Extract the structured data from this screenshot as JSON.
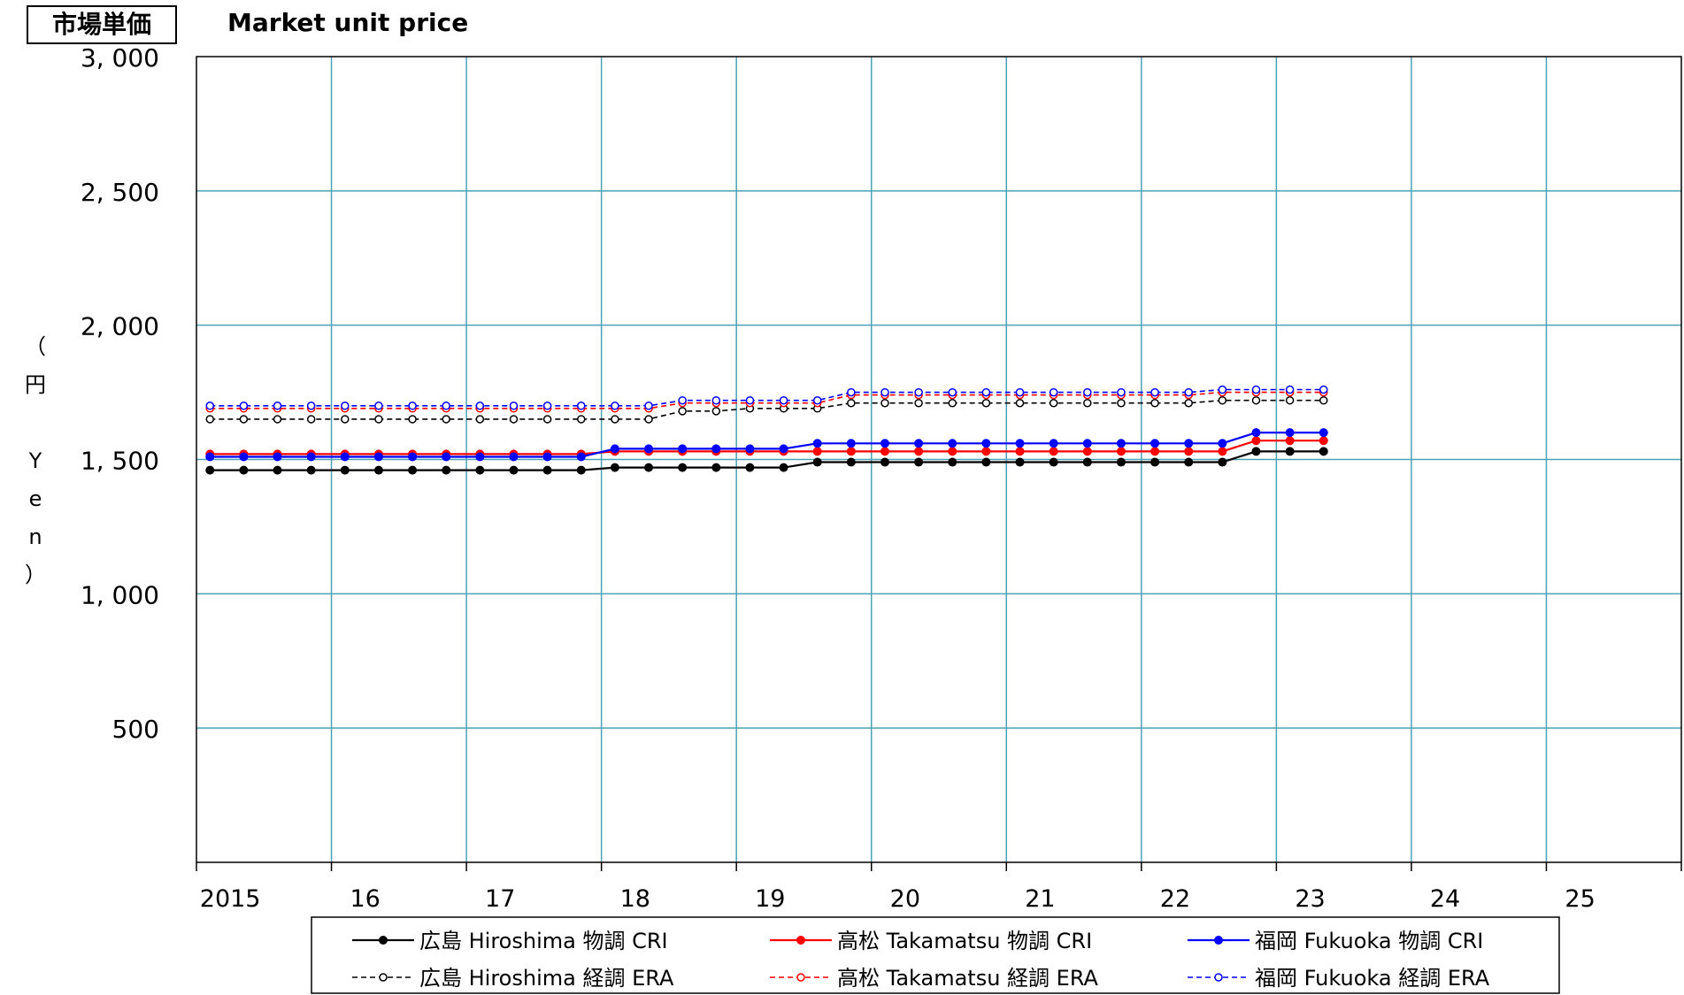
{
  "header": {
    "jp_title": "市場単価",
    "en_title": "Market unit price"
  },
  "chart_data": {
    "type": "line",
    "title": "Market unit price",
    "ylabel": "（円 Yen）",
    "ylim": [
      0,
      3000
    ],
    "yticks": [
      500,
      1000,
      1500,
      2000,
      2500,
      3000
    ],
    "ytick_labels": [
      "500",
      "1, 000",
      "1, 500",
      "2, 000",
      "2, 500",
      "3, 000"
    ],
    "xlim": [
      2015,
      2026
    ],
    "x_tick_labels": [
      "2015",
      "16",
      "17",
      "18",
      "19",
      "20",
      "21",
      "22",
      "23",
      "24",
      "25"
    ],
    "x_label_positions": [
      2015.25,
      2016.25,
      2017.25,
      2018.25,
      2019.25,
      2020.25,
      2021.25,
      2022.25,
      2023.25,
      2024.25,
      2025.25
    ],
    "x": [
      2015.1,
      2015.35,
      2015.6,
      2015.85,
      2016.1,
      2016.35,
      2016.6,
      2016.85,
      2017.1,
      2017.35,
      2017.6,
      2017.85,
      2018.1,
      2018.35,
      2018.6,
      2018.85,
      2019.1,
      2019.35,
      2019.6,
      2019.85,
      2020.1,
      2020.35,
      2020.6,
      2020.85,
      2021.1,
      2021.35,
      2021.6,
      2021.85,
      2022.1,
      2022.35,
      2022.6,
      2022.85,
      2023.1,
      2023.35
    ],
    "grid": true,
    "legend_position": "bottom",
    "series": [
      {
        "name": "広島 Hiroshima 物調 CRI",
        "color": "#000000",
        "style": "solid",
        "marker": "filled",
        "values": [
          1460,
          1460,
          1460,
          1460,
          1460,
          1460,
          1460,
          1460,
          1460,
          1460,
          1460,
          1460,
          1470,
          1470,
          1470,
          1470,
          1470,
          1470,
          1490,
          1490,
          1490,
          1490,
          1490,
          1490,
          1490,
          1490,
          1490,
          1490,
          1490,
          1490,
          1490,
          1530,
          1530,
          1530
        ]
      },
      {
        "name": "高松 Takamatsu 物調 CRI",
        "color": "#ff0000",
        "style": "solid",
        "marker": "filled",
        "values": [
          1520,
          1520,
          1520,
          1520,
          1520,
          1520,
          1520,
          1520,
          1520,
          1520,
          1520,
          1520,
          1530,
          1530,
          1530,
          1530,
          1530,
          1530,
          1530,
          1530,
          1530,
          1530,
          1530,
          1530,
          1530,
          1530,
          1530,
          1530,
          1530,
          1530,
          1530,
          1570,
          1570,
          1570
        ]
      },
      {
        "name": "福岡 Fukuoka  物調 CRI",
        "color": "#0000ff",
        "style": "solid",
        "marker": "filled",
        "values": [
          1510,
          1510,
          1510,
          1510,
          1510,
          1510,
          1510,
          1510,
          1510,
          1510,
          1510,
          1510,
          1540,
          1540,
          1540,
          1540,
          1540,
          1540,
          1560,
          1560,
          1560,
          1560,
          1560,
          1560,
          1560,
          1560,
          1560,
          1560,
          1560,
          1560,
          1560,
          1600,
          1600,
          1600
        ]
      },
      {
        "name": "広島 Hiroshima 経調 ERA",
        "color": "#000000",
        "style": "dashed",
        "marker": "open",
        "values": [
          1650,
          1650,
          1650,
          1650,
          1650,
          1650,
          1650,
          1650,
          1650,
          1650,
          1650,
          1650,
          1650,
          1650,
          1680,
          1680,
          1690,
          1690,
          1690,
          1710,
          1710,
          1710,
          1710,
          1710,
          1710,
          1710,
          1710,
          1710,
          1710,
          1710,
          1720,
          1720,
          1720,
          1720
        ]
      },
      {
        "name": "高松 Takamatsu 経調 ERA",
        "color": "#ff0000",
        "style": "dashed",
        "marker": "open",
        "values": [
          1690,
          1690,
          1690,
          1690,
          1690,
          1690,
          1690,
          1690,
          1690,
          1690,
          1690,
          1690,
          1690,
          1690,
          1710,
          1710,
          1710,
          1710,
          1710,
          1740,
          1740,
          1740,
          1740,
          1740,
          1740,
          1740,
          1740,
          1740,
          1740,
          1740,
          1750,
          1750,
          1750,
          1750
        ]
      },
      {
        "name": "福岡 Fukuoka  経調 ERA",
        "color": "#0000ff",
        "style": "dashed",
        "marker": "open",
        "values": [
          1700,
          1700,
          1700,
          1700,
          1700,
          1700,
          1700,
          1700,
          1700,
          1700,
          1700,
          1700,
          1700,
          1700,
          1720,
          1720,
          1720,
          1720,
          1720,
          1750,
          1750,
          1750,
          1750,
          1750,
          1750,
          1750,
          1750,
          1750,
          1750,
          1750,
          1760,
          1760,
          1760,
          1760
        ]
      }
    ]
  }
}
